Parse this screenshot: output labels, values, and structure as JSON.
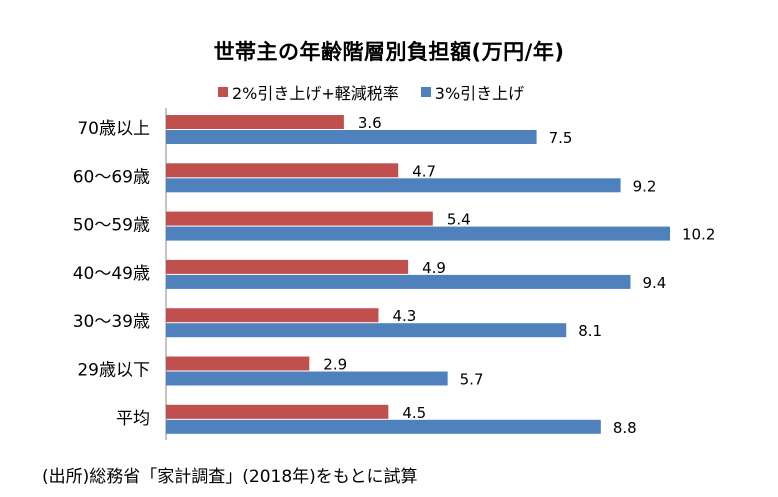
{
  "chart_data": {
    "type": "bar",
    "orientation": "horizontal",
    "title": "世帯主の年齢階層別負担額(万円/年)",
    "categories": [
      "70歳以上",
      "60〜69歳",
      "50〜59歳",
      "40〜49歳",
      "30〜39歳",
      "29歳以下",
      "平均"
    ],
    "series": [
      {
        "name": "2%引き上げ+軽減税率",
        "color": "#c0504d",
        "values": [
          3.6,
          4.7,
          5.4,
          4.9,
          4.3,
          2.9,
          4.5
        ]
      },
      {
        "name": "3%引き上げ",
        "color": "#4f81bd",
        "values": [
          7.5,
          9.2,
          10.2,
          9.4,
          8.1,
          5.7,
          8.8
        ]
      }
    ],
    "xlim": [
      0,
      10.2
    ],
    "grid": false,
    "legend_position": "top"
  },
  "source_note": "(出所)総務省「家計調査」(2018年)をもとに試算"
}
